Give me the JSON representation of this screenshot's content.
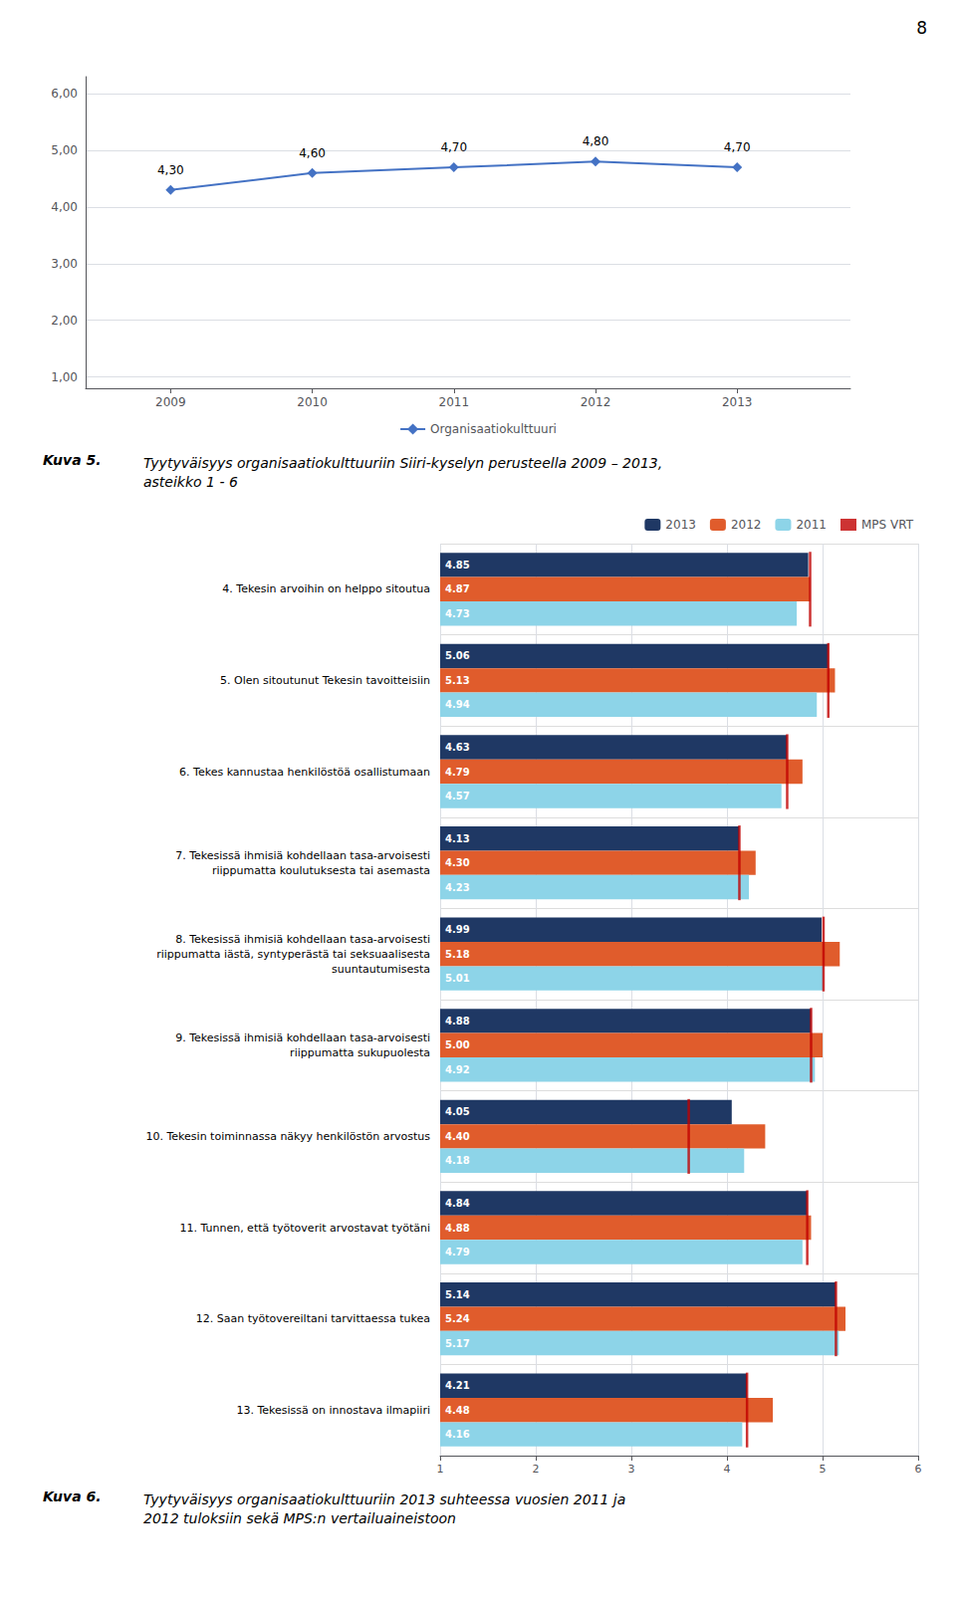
{
  "chart_data": [
    {
      "type": "line",
      "title": "Kuva 5.",
      "subtitle": "Tyytyväisyys organisaatiokulttuuriin Siiri-kyselyn perusteella 2009 – 2013,\nasteikko 1 - 6",
      "annotations": [
        "8"
      ],
      "x": [
        2009,
        2010,
        2011,
        2012,
        2013
      ],
      "xlim": [
        2008.4,
        2013.8
      ],
      "xticks": [
        2009,
        2010,
        2011,
        2012,
        2013
      ],
      "ylim": [
        0.8,
        6.3
      ],
      "yticks": [
        {
          "value": 1.0,
          "label": "1,00"
        },
        {
          "value": 2.0,
          "label": "2,00"
        },
        {
          "value": 3.0,
          "label": "3,00"
        },
        {
          "value": 4.0,
          "label": "4,00"
        },
        {
          "value": 5.0,
          "label": "5,00"
        },
        {
          "value": 6.0,
          "label": "6,00"
        }
      ],
      "series": [
        {
          "name": "Organisaatiokulttuuri",
          "color": "#4472C4",
          "marker": "diamond",
          "values": [
            4.3,
            4.6,
            4.7,
            4.8,
            4.7
          ],
          "value_labels": [
            "4,30",
            "4,60",
            "4,70",
            "4,80",
            "4,70"
          ]
        }
      ],
      "data_labels": true,
      "grid": true,
      "legend": "bottom"
    },
    {
      "type": "bar",
      "orientation": "horizontal",
      "title": "Kuva 6.",
      "subtitle": "Tyytyväisyys organisaatiokulttuuriin 2013 suhteessa vuosien 2011 ja\n2012 tuloksiin sekä MPS:n vertailuaineistoon",
      "categories": [
        "4. Tekesin arvoihin on helppo sitoutua",
        "5. Olen sitoutunut Tekesin tavoitteisiin",
        "6. Tekes kannustaa henkilöstöä osallistumaan",
        "7. Tekesissä ihmisiä kohdellaan tasa-arvoisesti\nriippumatta koulutuksesta tai asemasta",
        "8. Tekesissä ihmisiä kohdellaan tasa-arvoisesti\nriippumatta iästä, syntyperästä tai seksuaalisesta\nsuuntautumisesta",
        "9. Tekesissä ihmisiä kohdellaan tasa-arvoisesti\nriippumatta sukupuolesta",
        "10. Tekesin toiminnassa näkyy henkilöstön arvostus",
        "11. Tunnen, että työtoverit arvostavat työtäni",
        "12. Saan työtovereiltani tarvittaessa tukea",
        "13. Tekesissä on innostava ilmapiiri"
      ],
      "xlim": [
        1,
        6
      ],
      "xticks": [
        1,
        2,
        3,
        4,
        5,
        6
      ],
      "series": [
        {
          "name": "2013",
          "color": "#1F3864",
          "values": [
            4.85,
            5.06,
            4.63,
            4.13,
            4.99,
            4.88,
            4.05,
            4.84,
            5.14,
            4.21
          ],
          "value_labels": [
            "4.85",
            "5.06",
            "4.63",
            "4.13",
            "4.99",
            "4.88",
            "4.05",
            "4.84",
            "5.14",
            "4.21"
          ]
        },
        {
          "name": "2012",
          "color": "#E05C2C",
          "values": [
            4.87,
            5.13,
            4.79,
            4.3,
            5.18,
            5.0,
            4.4,
            4.88,
            5.24,
            4.48
          ],
          "value_labels": [
            "4.87",
            "5.13",
            "4.79",
            "4.30",
            "5.18",
            "5.00",
            "4.40",
            "4.88",
            "5.24",
            "4.48"
          ]
        },
        {
          "name": "2011",
          "color": "#8DD4E8",
          "values": [
            4.73,
            4.94,
            4.57,
            4.23,
            5.01,
            4.92,
            4.18,
            4.79,
            5.17,
            4.16
          ],
          "value_labels": [
            "4.73",
            "4.94",
            "4.57",
            "4.23",
            "5.01",
            "4.92",
            "4.18",
            "4.79",
            "5.17",
            "4.16"
          ]
        },
        {
          "name": "MPS VRT",
          "type": "scatter",
          "marker": "vline",
          "color": "#C00000",
          "values": [
            4.87,
            5.06,
            4.63,
            4.13,
            5.01,
            4.88,
            3.6,
            4.84,
            5.14,
            4.21
          ]
        }
      ],
      "data_labels": true,
      "grid": true,
      "legend": "upper right"
    }
  ]
}
